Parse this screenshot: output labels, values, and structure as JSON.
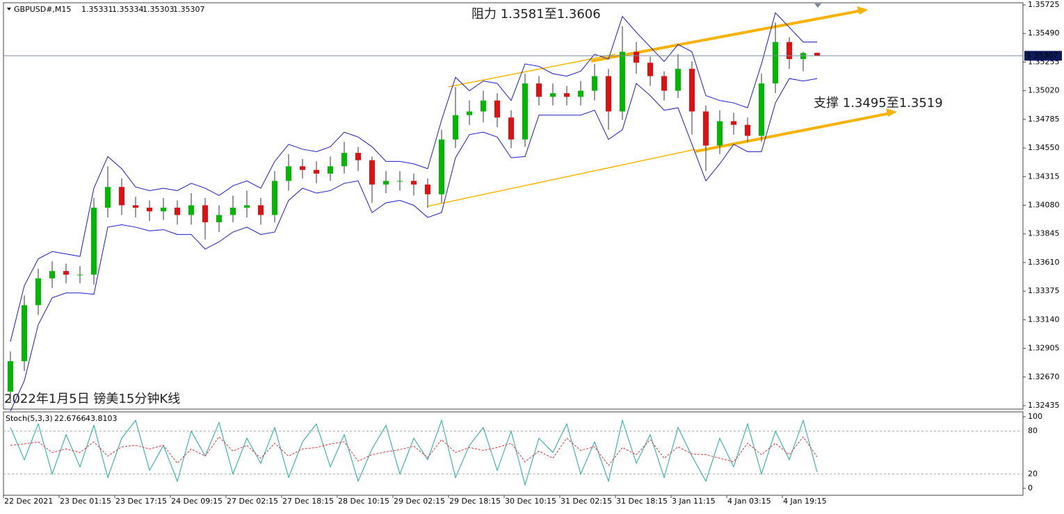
{
  "chart_data": {
    "type": "candlestick",
    "symbol": "GBPUSD#,M15",
    "annotations": [
      "阻力 1.3581至1.3606",
      "支撑 1.3495至1.3519",
      "2022年1月5日 镑美15分钟K线"
    ],
    "categories": [
      "22 Dec 2021",
      null,
      null,
      null,
      "23 Dec 01:15",
      null,
      null,
      null,
      "23 Dec 17:15",
      null,
      null,
      null,
      "24 Dec 09:15",
      null,
      null,
      null,
      "27 Dec 02:15",
      null,
      null,
      null,
      "27 Dec 18:15",
      null,
      null,
      null,
      "28 Dec 10:15",
      null,
      null,
      null,
      "29 Dec 02:15",
      null,
      null,
      null,
      "29 Dec 18:15",
      null,
      null,
      null,
      "30 Dec 10:15",
      null,
      null,
      null,
      "31 Dec 02:15",
      null,
      null,
      null,
      "31 Dec 18:15",
      null,
      null,
      null,
      "3 Jan 11:15",
      null,
      null,
      null,
      "4 Jan 03:15",
      null,
      null,
      null,
      "4 Jan 19:15",
      null,
      null
    ],
    "open": [
      1.3255,
      1.328,
      1.3326,
      1.3348,
      1.3354,
      1.3351,
      1.3351,
      1.3406,
      1.3423,
      1.3408,
      1.3406,
      1.3403,
      1.3406,
      1.34,
      1.3408,
      1.3394,
      1.34,
      1.3406,
      1.3408,
      1.34,
      1.3428,
      1.344,
      1.3437,
      1.3434,
      1.344,
      1.3451,
      1.3445,
      1.3425,
      1.3428,
      1.3428,
      1.3425,
      1.3417,
      1.3462,
      1.3482,
      1.3485,
      1.3494,
      1.348,
      1.3462,
      1.3508,
      1.3497,
      1.35,
      1.3497,
      1.3502,
      1.3514,
      1.3485,
      1.3534,
      1.3525,
      1.3514,
      1.3502,
      1.352,
      1.3485,
      1.3457,
      1.3477,
      1.3474,
      1.3465,
      1.3508,
      1.3542,
      1.3528,
      1.35331
    ],
    "high": [
      1.3288,
      1.3334,
      1.3356,
      1.3362,
      1.336,
      1.3358,
      1.3414,
      1.344,
      1.343,
      1.3415,
      1.3412,
      1.3414,
      1.3412,
      1.3418,
      1.3414,
      1.3408,
      1.3416,
      1.342,
      1.3414,
      1.3436,
      1.345,
      1.3446,
      1.3444,
      1.3448,
      1.346,
      1.3456,
      1.3448,
      1.3436,
      1.3436,
      1.3434,
      1.343,
      1.347,
      1.3505,
      1.3494,
      1.3502,
      1.35,
      1.3486,
      1.3516,
      1.3514,
      1.3508,
      1.3506,
      1.351,
      1.3524,
      1.352,
      1.3555,
      1.3542,
      1.353,
      1.3518,
      1.3532,
      1.3526,
      1.349,
      1.3486,
      1.3484,
      1.348,
      1.3516,
      1.3558,
      1.3546,
      1.3534,
      1.35334
    ],
    "low": [
      1.3247,
      1.3272,
      1.3318,
      1.334,
      1.3344,
      1.3344,
      1.3343,
      1.3398,
      1.34,
      1.3398,
      1.3395,
      1.3396,
      1.3392,
      1.3392,
      1.338,
      1.3386,
      1.3394,
      1.3398,
      1.3392,
      1.3394,
      1.342,
      1.343,
      1.3426,
      1.3428,
      1.3434,
      1.3436,
      1.341,
      1.3418,
      1.342,
      1.3416,
      1.3406,
      1.341,
      1.3455,
      1.3474,
      1.3476,
      1.3472,
      1.3455,
      1.3456,
      1.349,
      1.349,
      1.349,
      1.349,
      1.3494,
      1.347,
      1.3478,
      1.3516,
      1.3506,
      1.3494,
      1.3496,
      1.3466,
      1.3436,
      1.345,
      1.3466,
      1.346,
      1.346,
      1.35,
      1.352,
      1.3518,
      1.35303
    ],
    "close": [
      1.328,
      1.3326,
      1.3348,
      1.3354,
      1.3351,
      1.3351,
      1.3406,
      1.3423,
      1.3408,
      1.3406,
      1.3403,
      1.3406,
      1.34,
      1.3408,
      1.3394,
      1.34,
      1.3406,
      1.3408,
      1.34,
      1.3428,
      1.344,
      1.3437,
      1.3434,
      1.344,
      1.3451,
      1.3445,
      1.3425,
      1.3428,
      1.3428,
      1.3425,
      1.3417,
      1.3462,
      1.3482,
      1.3485,
      1.3494,
      1.348,
      1.3462,
      1.3508,
      1.3497,
      1.35,
      1.3497,
      1.3502,
      1.3514,
      1.3485,
      1.3534,
      1.3525,
      1.3514,
      1.3502,
      1.352,
      1.3485,
      1.3457,
      1.3477,
      1.3474,
      1.3465,
      1.3508,
      1.3542,
      1.3528,
      1.3533,
      1.35307
    ],
    "band_upper": [
      1.3296,
      1.3342,
      1.3364,
      1.337,
      1.3368,
      1.3366,
      1.3422,
      1.3448,
      1.3438,
      1.3423,
      1.342,
      1.3422,
      1.342,
      1.3426,
      1.3422,
      1.3416,
      1.3424,
      1.3428,
      1.3422,
      1.3444,
      1.3458,
      1.3454,
      1.3452,
      1.3456,
      1.3468,
      1.3464,
      1.3456,
      1.3444,
      1.3444,
      1.3442,
      1.3438,
      1.3478,
      1.3513,
      1.3502,
      1.351,
      1.3508,
      1.3494,
      1.3524,
      1.3522,
      1.3516,
      1.3514,
      1.3518,
      1.3532,
      1.3528,
      1.3563,
      1.355,
      1.3538,
      1.3526,
      1.354,
      1.3534,
      1.3498,
      1.3494,
      1.3492,
      1.3488,
      1.3524,
      1.3566,
      1.3554,
      1.3542,
      1.3542
    ],
    "band_lower": [
      1.3239,
      1.3264,
      1.331,
      1.3332,
      1.3336,
      1.3336,
      1.3335,
      1.339,
      1.3392,
      1.339,
      1.3387,
      1.3388,
      1.3384,
      1.3384,
      1.3372,
      1.3378,
      1.3386,
      1.339,
      1.3384,
      1.3386,
      1.3412,
      1.3422,
      1.3418,
      1.342,
      1.3426,
      1.3428,
      1.3402,
      1.341,
      1.3412,
      1.3408,
      1.3398,
      1.3402,
      1.3447,
      1.3466,
      1.3468,
      1.3464,
      1.3447,
      1.3448,
      1.3482,
      1.3482,
      1.3482,
      1.3482,
      1.3486,
      1.3462,
      1.347,
      1.3508,
      1.3498,
      1.3486,
      1.3488,
      1.3458,
      1.3428,
      1.3442,
      1.3458,
      1.3452,
      1.3452,
      1.3492,
      1.3512,
      1.351,
      1.3512
    ],
    "ylim": [
      1.32435,
      1.35725
    ],
    "yticks": [
      1.32435,
      {
        "value": 1.3267,
        "label": "1.32670"
      },
      1.32905,
      {
        "value": 1.3314,
        "label": "1.33140"
      },
      1.33375,
      {
        "value": 1.3361,
        "label": "1.33610"
      },
      1.33845,
      {
        "value": 1.3408,
        "label": "1.34080"
      },
      1.34315,
      {
        "value": 1.3455,
        "label": "1.34550"
      },
      1.34785,
      {
        "value": 1.3502,
        "label": "1.35020"
      },
      1.35255,
      {
        "value": 1.3549,
        "label": "1.35490"
      },
      1.35725
    ],
    "up_color": "#00b800",
    "down_color": "#e01010",
    "band_color": "#1a1acc",
    "stoch": {
      "name": "Stoch(5,3,3)",
      "ylim": [
        0,
        100
      ],
      "yticks": [
        0,
        20,
        80,
        100
      ],
      "k_color": "#1aaaa0",
      "d_color": "#e03030",
      "k": [
        85,
        40,
        90,
        20,
        75,
        30,
        88,
        15,
        70,
        95,
        25,
        60,
        10,
        80,
        45,
        92,
        20,
        70,
        35,
        85,
        15,
        65,
        90,
        30,
        75,
        10,
        55,
        88,
        20,
        70,
        40,
        95,
        15,
        60,
        85,
        25,
        80,
        5,
        70,
        50,
        90,
        20,
        65,
        10,
        95,
        35,
        75,
        15,
        85,
        45,
        10,
        70,
        30,
        90,
        20,
        80,
        40,
        95,
        22.6766
      ],
      "d": [
        60,
        62,
        65,
        50,
        55,
        50,
        65,
        45,
        58,
        60,
        55,
        60,
        35,
        55,
        45,
        72,
        52,
        60,
        42,
        63,
        45,
        55,
        57,
        62,
        65,
        38,
        47,
        51,
        54,
        59,
        43,
        68,
        50,
        57,
        53,
        57,
        63,
        37,
        52,
        42,
        70,
        53,
        58,
        32,
        57,
        47,
        68,
        42,
        58,
        48,
        47,
        42,
        37,
        63,
        47,
        63,
        47,
        72,
        43.8103
      ]
    }
  }
}
